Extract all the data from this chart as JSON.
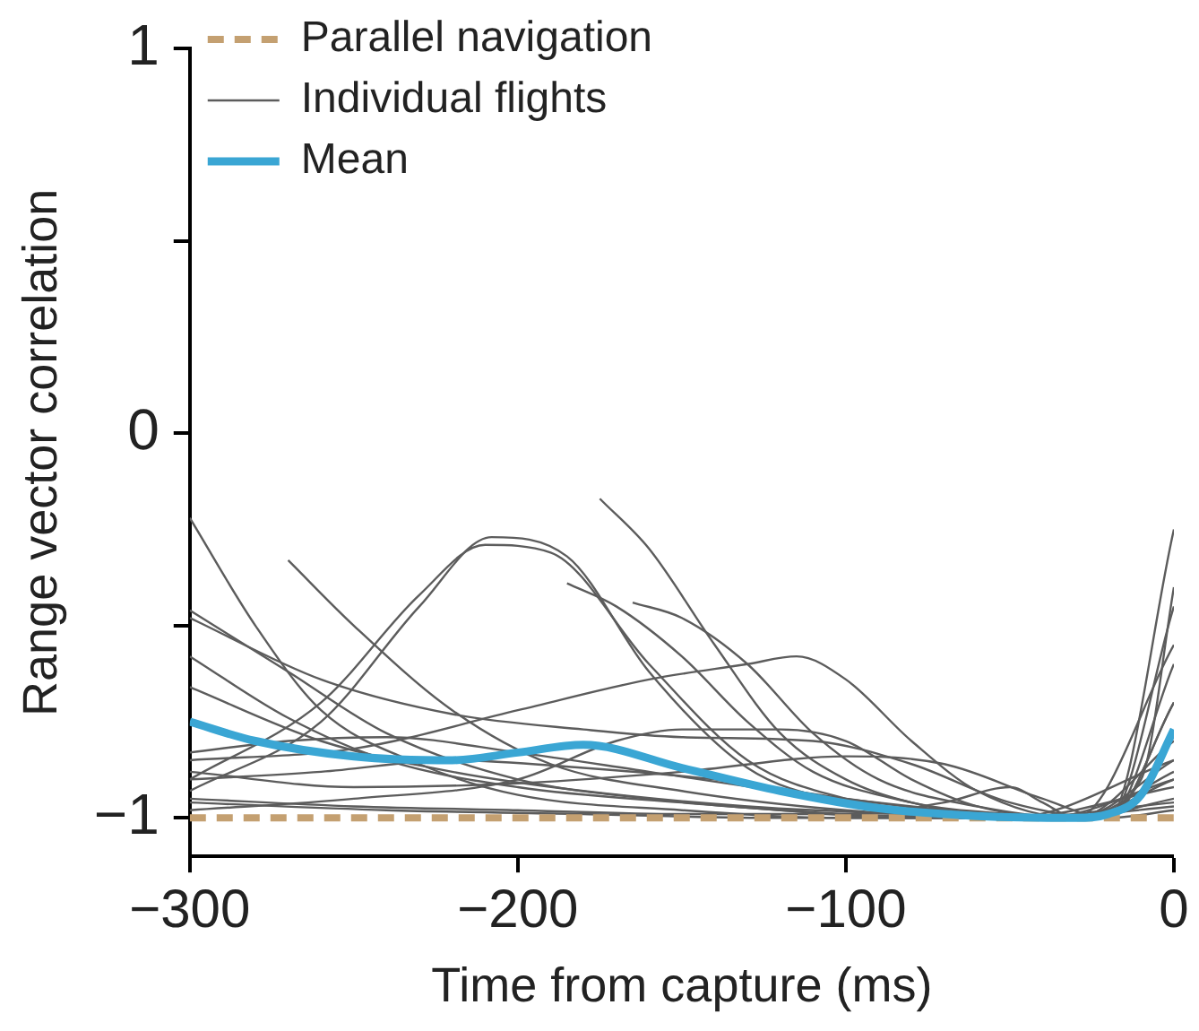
{
  "chart_data": {
    "type": "line",
    "xlabel": "Time from capture (ms)",
    "ylabel": "Range vector correlation",
    "xlim": [
      -300,
      0
    ],
    "ylim": [
      -1.1,
      1
    ],
    "xticks": [
      {
        "value": -300,
        "label": "−300"
      },
      {
        "value": -200,
        "label": "−200"
      },
      {
        "value": -100,
        "label": "−100"
      },
      0
    ],
    "yticks": [
      {
        "value": -1,
        "label": "−1"
      },
      {
        "value": -0.5,
        "label": null
      },
      0,
      {
        "value": 0.5,
        "label": null
      },
      1
    ],
    "grid": false,
    "legend": "top left",
    "marker": "none",
    "line_style": "solid",
    "series": [
      {
        "name": "Parallel navigation",
        "color": "#c4a071",
        "line_style": "dashed",
        "x": [
          -300,
          0
        ],
        "values": [
          -1,
          -1
        ]
      },
      {
        "name": "Individual flights",
        "color": "#5c5c5c",
        "x": [
          -300,
          -260,
          -230,
          -210,
          -190,
          -160,
          -130,
          -100,
          -60,
          -30,
          0
        ],
        "values": [
          -0.9,
          -0.7,
          -0.42,
          -0.29,
          -0.31,
          -0.6,
          -0.85,
          -0.95,
          -0.99,
          -1.0,
          -0.9
        ]
      },
      {
        "color": "#5c5c5c",
        "x": [
          -300,
          -260,
          -230,
          -208,
          -185,
          -160,
          -130,
          -100,
          -60,
          -30,
          0
        ],
        "values": [
          -0.93,
          -0.75,
          -0.45,
          -0.27,
          -0.32,
          -0.62,
          -0.87,
          -0.96,
          -1.0,
          -1.0,
          -0.8
        ]
      },
      {
        "color": "#5c5c5c",
        "x": [
          -300,
          -280,
          -260,
          -230,
          -200,
          -150,
          -100,
          -50,
          0
        ],
        "values": [
          -0.22,
          -0.5,
          -0.72,
          -0.86,
          -0.94,
          -0.98,
          -1.0,
          -1.0,
          -0.96
        ]
      },
      {
        "color": "#5c5c5c",
        "x": [
          -270,
          -250,
          -220,
          -190,
          -150,
          -100,
          -50,
          0
        ],
        "values": [
          -0.33,
          -0.5,
          -0.72,
          -0.86,
          -0.93,
          -0.98,
          -1.0,
          -0.85
        ]
      },
      {
        "color": "#5c5c5c",
        "x": [
          -175,
          -160,
          -140,
          -120,
          -100,
          -80,
          -50,
          -20,
          0
        ],
        "values": [
          -0.17,
          -0.3,
          -0.55,
          -0.78,
          -0.9,
          -0.96,
          -0.99,
          -1.0,
          -0.25
        ]
      },
      {
        "color": "#5c5c5c",
        "x": [
          -185,
          -170,
          -150,
          -130,
          -110,
          -80,
          -50,
          -20,
          0
        ],
        "values": [
          -0.39,
          -0.45,
          -0.58,
          -0.75,
          -0.88,
          -0.96,
          -1.0,
          -1.0,
          -0.45
        ]
      },
      {
        "color": "#5c5c5c",
        "x": [
          -165,
          -150,
          -130,
          -110,
          -90,
          -60,
          -30,
          0
        ],
        "values": [
          -0.44,
          -0.48,
          -0.6,
          -0.78,
          -0.9,
          -0.97,
          -1.0,
          -0.55
        ]
      },
      {
        "color": "#5c5c5c",
        "x": [
          -300,
          -250,
          -200,
          -160,
          -130,
          -115,
          -100,
          -80,
          -60,
          -30,
          0
        ],
        "values": [
          -0.85,
          -0.82,
          -0.72,
          -0.64,
          -0.6,
          -0.58,
          -0.64,
          -0.8,
          -0.93,
          -1.0,
          -0.88
        ]
      },
      {
        "color": "#5c5c5c",
        "x": [
          -300,
          -250,
          -200,
          -150,
          -100,
          -70,
          -50,
          -40,
          -30,
          -10,
          0
        ],
        "values": [
          -0.95,
          -0.97,
          -0.98,
          -0.99,
          -0.99,
          -0.96,
          -0.92,
          -0.96,
          -1.0,
          -0.9,
          -0.4
        ]
      },
      {
        "color": "#5c5c5c",
        "x": [
          -300,
          -260,
          -220,
          -180,
          -150,
          -110,
          -80,
          -50,
          -20,
          0
        ],
        "values": [
          -0.48,
          -0.64,
          -0.73,
          -0.77,
          -0.79,
          -0.8,
          -0.86,
          -0.96,
          -1.0,
          -0.7
        ]
      },
      {
        "color": "#5c5c5c",
        "x": [
          -300,
          -270,
          -240,
          -200,
          -150,
          -100,
          -50,
          0
        ],
        "values": [
          -0.58,
          -0.74,
          -0.85,
          -0.92,
          -0.96,
          -0.99,
          -1.0,
          -0.92
        ]
      },
      {
        "color": "#5c5c5c",
        "x": [
          -300,
          -260,
          -220,
          -180,
          -130,
          -80,
          -30,
          0
        ],
        "values": [
          -0.66,
          -0.8,
          -0.88,
          -0.93,
          -0.97,
          -0.99,
          -1.0,
          -0.95
        ]
      },
      {
        "color": "#5c5c5c",
        "x": [
          -300,
          -240,
          -180,
          -120,
          -60,
          -20,
          0
        ],
        "values": [
          -0.96,
          -0.98,
          -0.99,
          -1.0,
          -1.0,
          -1.0,
          -0.98
        ]
      },
      {
        "color": "#5c5c5c",
        "x": [
          -300,
          -270,
          -240,
          -200,
          -160,
          -120,
          -80,
          -40,
          0
        ],
        "values": [
          -0.83,
          -0.8,
          -0.79,
          -0.83,
          -0.88,
          -0.93,
          -0.97,
          -1.0,
          -0.9
        ]
      },
      {
        "color": "#5c5c5c",
        "x": [
          -300,
          -250,
          -200,
          -170,
          -150,
          -120,
          -100,
          -80,
          -60,
          -30,
          0
        ],
        "values": [
          -0.98,
          -0.95,
          -0.9,
          -0.8,
          -0.77,
          -0.77,
          -0.8,
          -0.9,
          -0.97,
          -1.0,
          -0.85
        ]
      },
      {
        "color": "#5c5c5c",
        "x": [
          -300,
          -270,
          -240,
          -200,
          -160,
          -120,
          -80,
          -40,
          0
        ],
        "values": [
          -0.46,
          -0.62,
          -0.78,
          -0.9,
          -0.95,
          -0.98,
          -1.0,
          -1.0,
          -0.97
        ]
      },
      {
        "color": "#5c5c5c",
        "x": [
          -300,
          -260,
          -220,
          -180,
          -140,
          -100,
          -60,
          -20,
          0
        ],
        "values": [
          -0.9,
          -0.88,
          -0.85,
          -0.87,
          -0.9,
          -0.95,
          -0.99,
          -1.0,
          -0.6
        ]
      },
      {
        "color": "#5c5c5c",
        "x": [
          -300,
          -250,
          -200,
          -150,
          -100,
          -70,
          -40,
          -20,
          0
        ],
        "values": [
          -0.88,
          -0.92,
          -0.91,
          -0.88,
          -0.84,
          -0.86,
          -0.95,
          -1.0,
          -0.7
        ]
      },
      {
        "name": "Mean",
        "color": "#3aa6d4",
        "x": [
          -300,
          -280,
          -250,
          -220,
          -200,
          -180,
          -150,
          -120,
          -90,
          -60,
          -30,
          -20,
          -10,
          0
        ],
        "values": [
          -0.75,
          -0.8,
          -0.84,
          -0.85,
          -0.83,
          -0.81,
          -0.87,
          -0.93,
          -0.975,
          -0.995,
          -1.0,
          -0.99,
          -0.94,
          -0.77
        ]
      }
    ]
  }
}
